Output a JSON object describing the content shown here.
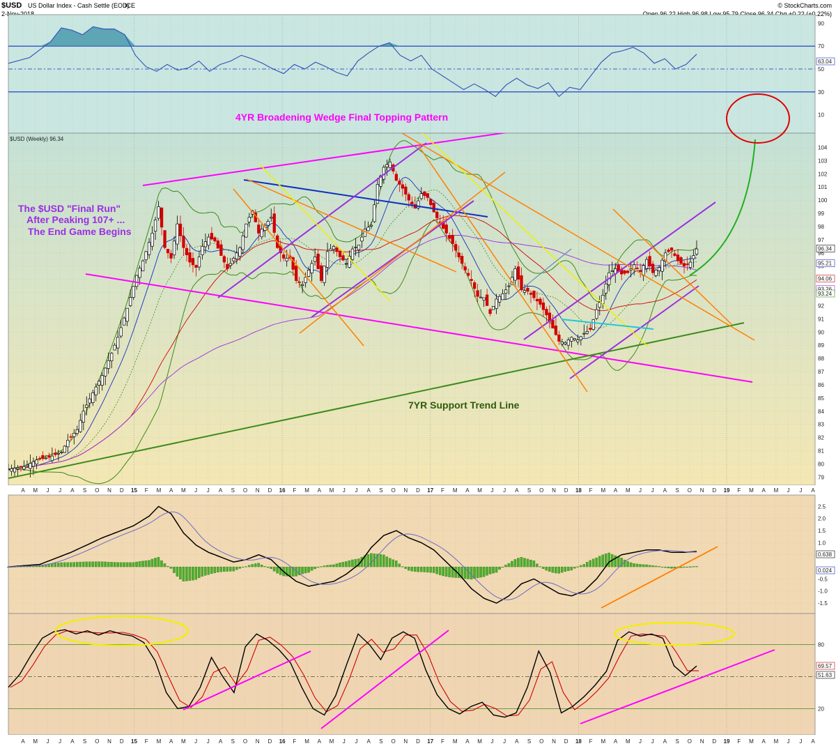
{
  "header": {
    "symbol": "$USD",
    "name": "US Dollar Index - Cash Settle (EOD)",
    "exchange": "ICE",
    "date": "2-Nov-2018",
    "ohlc": "Open 96.22  High 96.98  Low 95.79  Close 96.34  Chg +0.22 (+0.22%)",
    "watermark": "© StockCharts.com",
    "price_legend": "$USD (Weekly) 96.34"
  },
  "colors": {
    "rsi_bg": "#c9e6e0",
    "price_bg_top": "#c4e1d6",
    "price_bg_bottom": "#f4e7b3",
    "macd_bg": "#f1d9b3",
    "stoch_bg": "#f0d5b3",
    "candle_down": "#d10000",
    "candle_up": "#000000",
    "magenta": "#ff00ff",
    "purple": "#9a2fe0",
    "orange": "#ff8000",
    "yellow": "#f0f000",
    "green": "#3b8a1a",
    "blue": "#1030c0",
    "red": "#e00000"
  },
  "annotations": {
    "wedge": "4YR Broadening Wedge Final Topping Pattern",
    "final_run_1": "The $USD \"Final Run\"",
    "final_run_2": "After Peaking 107+ ...",
    "final_run_3": "The End Game Begins",
    "support": "7YR Support Trend Line"
  },
  "time_axis": {
    "labels": [
      "A",
      "M",
      "J",
      "J",
      "A",
      "S",
      "O",
      "N",
      "D",
      "15",
      "F",
      "M",
      "A",
      "M",
      "J",
      "J",
      "A",
      "S",
      "O",
      "N",
      "D",
      "16",
      "F",
      "M",
      "A",
      "M",
      "J",
      "J",
      "A",
      "S",
      "O",
      "N",
      "D",
      "17",
      "F",
      "M",
      "A",
      "M",
      "J",
      "J",
      "A",
      "S",
      "O",
      "N",
      "D",
      "18",
      "F",
      "M",
      "A",
      "M",
      "J",
      "J",
      "A",
      "S",
      "O",
      "N",
      "D",
      "19",
      "F",
      "M",
      "A",
      "M",
      "J",
      "J",
      "A"
    ],
    "year_labels": [
      "15",
      "16",
      "17",
      "18",
      "19"
    ]
  },
  "chart_data": [
    {
      "panel": "RSI(14)",
      "type": "line",
      "y_ticks": [
        "90",
        "70",
        "50",
        "30",
        "10"
      ],
      "levels": [
        70,
        50,
        30
      ],
      "last_value_label": "63.04",
      "points": [
        [
          0,
          55
        ],
        [
          8,
          60
        ],
        [
          12,
          67
        ],
        [
          16,
          74
        ],
        [
          20,
          86
        ],
        [
          24,
          84
        ],
        [
          28,
          80
        ],
        [
          32,
          87
        ],
        [
          36,
          85
        ],
        [
          40,
          85
        ],
        [
          44,
          80
        ],
        [
          48,
          62
        ],
        [
          52,
          52
        ],
        [
          56,
          48
        ],
        [
          60,
          54
        ],
        [
          64,
          49
        ],
        [
          68,
          51
        ],
        [
          72,
          57
        ],
        [
          76,
          48
        ],
        [
          80,
          54
        ],
        [
          84,
          57
        ],
        [
          88,
          62
        ],
        [
          92,
          59
        ],
        [
          96,
          55
        ],
        [
          100,
          50
        ],
        [
          104,
          46
        ],
        [
          108,
          54
        ],
        [
          112,
          50
        ],
        [
          116,
          56
        ],
        [
          120,
          52
        ],
        [
          124,
          47
        ],
        [
          128,
          44
        ],
        [
          132,
          57
        ],
        [
          136,
          64
        ],
        [
          140,
          70
        ],
        [
          144,
          73
        ],
        [
          148,
          62
        ],
        [
          152,
          57
        ],
        [
          156,
          62
        ],
        [
          160,
          50
        ],
        [
          164,
          44
        ],
        [
          168,
          38
        ],
        [
          172,
          32
        ],
        [
          176,
          37
        ],
        [
          180,
          32
        ],
        [
          184,
          26
        ],
        [
          188,
          36
        ],
        [
          192,
          42
        ],
        [
          196,
          36
        ],
        [
          200,
          33
        ],
        [
          204,
          38
        ],
        [
          208,
          26
        ],
        [
          212,
          34
        ],
        [
          216,
          32
        ],
        [
          220,
          44
        ],
        [
          224,
          56
        ],
        [
          228,
          64
        ],
        [
          232,
          66
        ],
        [
          236,
          69
        ],
        [
          240,
          64
        ],
        [
          244,
          55
        ],
        [
          248,
          59
        ],
        [
          252,
          50
        ],
        [
          256,
          54
        ],
        [
          260,
          63
        ]
      ]
    },
    {
      "panel": "Price",
      "type": "line",
      "series_label": "$USD (Weekly) 96.34",
      "y_ticks": [
        "104",
        "103",
        "102",
        "101",
        "100",
        "99",
        "98",
        "97",
        "96",
        "95",
        "94",
        "93",
        "92",
        "91",
        "90",
        "89",
        "88",
        "87",
        "86",
        "85",
        "84",
        "83",
        "82",
        "81",
        "80",
        "79"
      ],
      "ylim": [
        78.7,
        104.5
      ],
      "right_labels": [
        {
          "text": "96.34",
          "value": 96.34,
          "color": "#000000"
        },
        {
          "text": "95.21",
          "value": 95.21,
          "color": "#1030c0"
        },
        {
          "text": "94.06",
          "value": 94.06,
          "color": "#d10000"
        },
        {
          "text": "93.26",
          "value": 93.26,
          "color": "#9a2fe0"
        },
        {
          "text": "93.24",
          "value": 93.24,
          "color": "#3b8a1a"
        }
      ],
      "closes": [
        [
          0,
          79.6
        ],
        [
          5,
          79.8
        ],
        [
          9,
          80.3
        ],
        [
          13,
          80.5
        ],
        [
          17,
          80.9
        ],
        [
          19,
          81.8
        ],
        [
          22,
          82.6
        ],
        [
          24,
          84.0
        ],
        [
          27,
          85.4
        ],
        [
          30,
          86.7
        ],
        [
          33,
          88.4
        ],
        [
          35,
          89.6
        ],
        [
          38,
          91.8
        ],
        [
          41,
          94.3
        ],
        [
          43,
          95.4
        ],
        [
          46,
          97.5
        ],
        [
          48,
          99.5
        ],
        [
          50,
          96.4
        ],
        [
          52,
          95.6
        ],
        [
          54,
          98.2
        ],
        [
          56,
          96.4
        ],
        [
          58,
          95.3
        ],
        [
          60,
          94.9
        ],
        [
          62,
          96.5
        ],
        [
          64,
          97.2
        ],
        [
          66,
          96.9
        ],
        [
          68,
          95.8
        ],
        [
          70,
          94.8
        ],
        [
          72,
          95.6
        ],
        [
          74,
          96.4
        ],
        [
          76,
          98.2
        ],
        [
          78,
          99.2
        ],
        [
          80,
          97.5
        ],
        [
          82,
          98.1
        ],
        [
          84,
          98.7
        ],
        [
          86,
          96.4
        ],
        [
          88,
          95.6
        ],
        [
          90,
          95.6
        ],
        [
          92,
          93.9
        ],
        [
          94,
          93.6
        ],
        [
          96,
          94.7
        ],
        [
          98,
          95.7
        ],
        [
          100,
          93.9
        ],
        [
          102,
          96.1
        ],
        [
          104,
          96.5
        ],
        [
          106,
          95.7
        ],
        [
          108,
          95.2
        ],
        [
          110,
          96.3
        ],
        [
          112,
          96.6
        ],
        [
          114,
          97.8
        ],
        [
          116,
          98.1
        ],
        [
          118,
          101.2
        ],
        [
          120,
          102.5
        ],
        [
          122,
          102.9
        ],
        [
          124,
          101.5
        ],
        [
          126,
          100.9
        ],
        [
          128,
          100.0
        ],
        [
          130,
          99.4
        ],
        [
          132,
          100.5
        ],
        [
          134,
          100.2
        ],
        [
          136,
          99.1
        ],
        [
          138,
          98.2
        ],
        [
          140,
          97.5
        ],
        [
          142,
          96.7
        ],
        [
          144,
          95.7
        ],
        [
          146,
          94.7
        ],
        [
          148,
          93.9
        ],
        [
          150,
          92.7
        ],
        [
          152,
          92.6
        ],
        [
          154,
          91.4
        ],
        [
          156,
          92.5
        ],
        [
          158,
          92.9
        ],
        [
          160,
          93.5
        ],
        [
          162,
          94.8
        ],
        [
          164,
          93.2
        ],
        [
          166,
          93.1
        ],
        [
          168,
          92.6
        ],
        [
          170,
          92.1
        ],
        [
          172,
          91.3
        ],
        [
          174,
          90.3
        ],
        [
          176,
          89.3
        ],
        [
          178,
          89.2
        ],
        [
          180,
          89.6
        ],
        [
          182,
          89.4
        ],
        [
          184,
          89.9
        ],
        [
          186,
          90.2
        ],
        [
          188,
          91.7
        ],
        [
          190,
          92.8
        ],
        [
          192,
          94.5
        ],
        [
          194,
          94.8
        ],
        [
          196,
          94.4
        ],
        [
          198,
          94.5
        ],
        [
          200,
          95.1
        ],
        [
          202,
          94.6
        ],
        [
          204,
          95.5
        ],
        [
          206,
          94.5
        ],
        [
          208,
          94.9
        ],
        [
          210,
          96.0
        ],
        [
          212,
          96.2
        ],
        [
          214,
          95.4
        ],
        [
          216,
          95.0
        ],
        [
          218,
          95.3
        ],
        [
          220,
          96.3
        ]
      ],
      "moving_averages": [
        {
          "name": "MA short",
          "color": "#1030c0"
        },
        {
          "name": "MA medium",
          "color": "#d10000"
        },
        {
          "name": "MA long",
          "color": "#9a2fe0"
        },
        {
          "name": "Bollinger Bands",
          "color": "#3b8a1a"
        }
      ]
    },
    {
      "panel": "MACD",
      "type": "line",
      "y_ticks": [
        "2.5",
        "2.0",
        "1.5",
        "1.0",
        "0.5",
        "-0.5",
        "-1.0",
        "-1.5"
      ],
      "ylim": [
        -1.7,
        2.8
      ],
      "last_values": [
        "0.638",
        "0.024"
      ],
      "macd": [
        [
          0,
          0
        ],
        [
          10,
          0.1
        ],
        [
          20,
          0.6
        ],
        [
          30,
          1.2
        ],
        [
          40,
          1.7
        ],
        [
          45,
          2.1
        ],
        [
          48,
          2.5
        ],
        [
          52,
          2.2
        ],
        [
          56,
          1.4
        ],
        [
          60,
          0.9
        ],
        [
          64,
          0.6
        ],
        [
          68,
          0.4
        ],
        [
          72,
          0.2
        ],
        [
          76,
          0.3
        ],
        [
          80,
          0.5
        ],
        [
          84,
          0.3
        ],
        [
          88,
          -0.2
        ],
        [
          92,
          -0.6
        ],
        [
          96,
          -0.8
        ],
        [
          100,
          -0.7
        ],
        [
          104,
          -0.6
        ],
        [
          108,
          -0.3
        ],
        [
          112,
          0.1
        ],
        [
          116,
          0.8
        ],
        [
          120,
          1.3
        ],
        [
          124,
          1.5
        ],
        [
          128,
          1.2
        ],
        [
          132,
          1.0
        ],
        [
          136,
          0.7
        ],
        [
          140,
          0.2
        ],
        [
          144,
          -0.3
        ],
        [
          148,
          -0.9
        ],
        [
          152,
          -1.3
        ],
        [
          156,
          -1.5
        ],
        [
          160,
          -1.2
        ],
        [
          164,
          -0.7
        ],
        [
          168,
          -0.5
        ],
        [
          172,
          -0.8
        ],
        [
          176,
          -1.1
        ],
        [
          180,
          -1.2
        ],
        [
          184,
          -1.0
        ],
        [
          188,
          -0.5
        ],
        [
          192,
          0.2
        ],
        [
          196,
          0.5
        ],
        [
          200,
          0.6
        ],
        [
          204,
          0.7
        ],
        [
          208,
          0.7
        ],
        [
          212,
          0.6
        ],
        [
          216,
          0.6
        ],
        [
          220,
          0.64
        ]
      ]
    },
    {
      "panel": "Slow Stochastic",
      "type": "line",
      "y_ticks": [
        "80",
        "20"
      ],
      "levels": [
        80,
        50,
        20
      ],
      "last_values": [
        "69.57",
        "51.63"
      ],
      "k": [
        [
          0,
          40
        ],
        [
          4,
          52
        ],
        [
          8,
          70
        ],
        [
          12,
          86
        ],
        [
          16,
          92
        ],
        [
          20,
          94
        ],
        [
          24,
          90
        ],
        [
          28,
          93
        ],
        [
          32,
          89
        ],
        [
          36,
          93
        ],
        [
          40,
          90
        ],
        [
          44,
          88
        ],
        [
          48,
          82
        ],
        [
          52,
          65
        ],
        [
          56,
          35
        ],
        [
          60,
          20
        ],
        [
          64,
          22
        ],
        [
          68,
          40
        ],
        [
          72,
          68
        ],
        [
          76,
          50
        ],
        [
          80,
          35
        ],
        [
          84,
          78
        ],
        [
          88,
          90
        ],
        [
          92,
          84
        ],
        [
          96,
          75
        ],
        [
          100,
          63
        ],
        [
          104,
          40
        ],
        [
          108,
          20
        ],
        [
          112,
          14
        ],
        [
          116,
          32
        ],
        [
          120,
          62
        ],
        [
          124,
          90
        ],
        [
          128,
          80
        ],
        [
          132,
          66
        ],
        [
          136,
          86
        ],
        [
          140,
          92
        ],
        [
          144,
          86
        ],
        [
          148,
          56
        ],
        [
          152,
          33
        ],
        [
          156,
          20
        ],
        [
          160,
          15
        ],
        [
          164,
          22
        ],
        [
          168,
          26
        ],
        [
          172,
          14
        ],
        [
          176,
          12
        ],
        [
          180,
          16
        ],
        [
          184,
          40
        ],
        [
          188,
          74
        ],
        [
          192,
          54
        ],
        [
          196,
          16
        ],
        [
          200,
          22
        ],
        [
          204,
          31
        ],
        [
          208,
          42
        ],
        [
          212,
          55
        ],
        [
          216,
          84
        ],
        [
          220,
          92
        ],
        [
          224,
          88
        ],
        [
          228,
          90
        ],
        [
          232,
          86
        ],
        [
          236,
          60
        ],
        [
          240,
          51
        ],
        [
          244,
          60
        ]
      ]
    }
  ]
}
